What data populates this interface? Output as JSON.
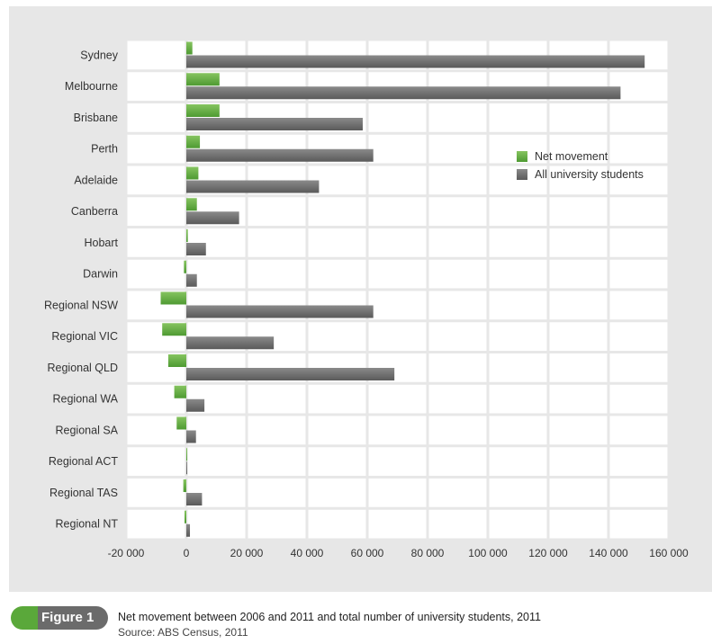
{
  "chart_data": {
    "type": "bar",
    "orientation": "horizontal",
    "title": "",
    "xlabel": "",
    "ylabel": "",
    "xlim": [
      -20000,
      160000
    ],
    "x_ticks": [
      -20000,
      0,
      20000,
      40000,
      60000,
      80000,
      100000,
      120000,
      140000,
      160000
    ],
    "x_tick_labels": [
      "-20 000",
      "0",
      "20 000",
      "40 000",
      "60 000",
      "80 000",
      "100 000",
      "120 000",
      "140 000",
      "160 000"
    ],
    "grid": true,
    "legend_position": "right",
    "categories": [
      "Sydney",
      "Melbourne",
      "Brisbane",
      "Perth",
      "Adelaide",
      "Canberra",
      "Hobart",
      "Darwin",
      "Regional NSW",
      "Regional VIC",
      "Regional QLD",
      "Regional WA",
      "Regional SA",
      "Regional ACT",
      "Regional TAS",
      "Regional NT"
    ],
    "series": [
      {
        "name": "Net movement",
        "color": "#5aa83a",
        "values": [
          2000,
          11000,
          11000,
          4500,
          4000,
          3500,
          500,
          -800,
          -8500,
          -8000,
          -6000,
          -4000,
          -3200,
          0,
          -1000,
          -600
        ]
      },
      {
        "name": "All university students",
        "color": "#6f6f6f",
        "values": [
          152000,
          144000,
          58500,
          62000,
          44000,
          17500,
          6500,
          3500,
          62000,
          29000,
          69000,
          6000,
          3200,
          100,
          5200,
          1200
        ]
      }
    ]
  },
  "caption": {
    "figure_label": "Figure 1",
    "title": "Net movement between 2006 and 2011 and total number of university students, 2011",
    "source": "Source: ABS Census, 2011"
  }
}
